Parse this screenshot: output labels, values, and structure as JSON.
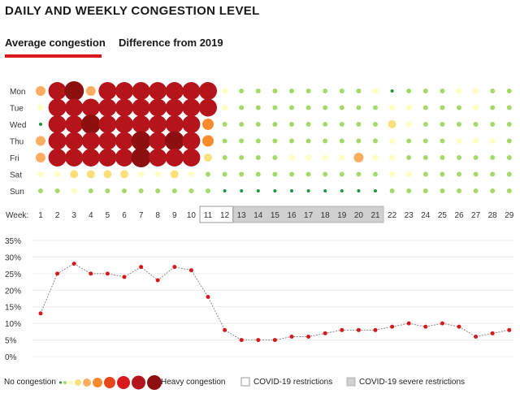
{
  "title": "DAILY AND WEEKLY CONGESTION LEVEL",
  "tabs": [
    {
      "label": "Average congestion",
      "active": true
    },
    {
      "label": "Difference from 2019",
      "active": false
    }
  ],
  "colors": {
    "accent": "#d7191c",
    "levels": [
      "#1a9641",
      "#a6d96a",
      "#ffffbf",
      "#f9e07a",
      "#fdae61",
      "#f98a2e",
      "#e8461b",
      "#d7191c",
      "#b5141a",
      "#8e0f12"
    ]
  },
  "chart_data": [
    {
      "type": "heatmap",
      "name": "congestion-dot-matrix",
      "days": [
        "Mon",
        "Tue",
        "Wed",
        "Thu",
        "Fri",
        "Sat",
        "Sun"
      ],
      "week_label": "Week:",
      "weeks": [
        "1",
        "2",
        "3",
        "4",
        "5",
        "6",
        "7",
        "8",
        "9",
        "10",
        "11",
        "12",
        "13",
        "14",
        "15",
        "16",
        "17",
        "18",
        "19",
        "20",
        "21",
        "22",
        "23",
        "24",
        "25",
        "26",
        "27",
        "28",
        "29"
      ],
      "levels": [
        [
          4,
          8,
          9,
          4,
          8,
          8,
          8,
          8,
          8,
          8,
          8,
          2,
          1,
          1,
          1,
          1,
          1,
          1,
          1,
          1,
          2,
          0,
          1,
          1,
          1,
          2,
          2,
          1,
          1
        ],
        [
          2,
          8,
          8,
          8,
          8,
          8,
          8,
          8,
          8,
          8,
          8,
          2,
          1,
          1,
          1,
          1,
          1,
          1,
          1,
          1,
          1,
          2,
          2,
          1,
          1,
          1,
          2,
          1,
          1
        ],
        [
          0,
          8,
          8,
          9,
          8,
          8,
          8,
          8,
          8,
          8,
          5,
          1,
          1,
          1,
          1,
          1,
          1,
          1,
          1,
          1,
          1,
          3,
          2,
          1,
          1,
          1,
          1,
          1,
          1
        ],
        [
          4,
          8,
          8,
          8,
          8,
          8,
          9,
          8,
          9,
          8,
          5,
          1,
          1,
          1,
          1,
          1,
          1,
          1,
          1,
          1,
          1,
          2,
          1,
          1,
          1,
          2,
          2,
          2,
          1
        ],
        [
          4,
          8,
          8,
          8,
          8,
          8,
          9,
          8,
          8,
          8,
          3,
          1,
          1,
          1,
          1,
          2,
          2,
          2,
          2,
          4,
          2,
          2,
          1,
          1,
          1,
          1,
          1,
          1,
          1
        ],
        [
          2,
          2,
          3,
          3,
          3,
          3,
          2,
          2,
          3,
          2,
          1,
          1,
          1,
          1,
          1,
          1,
          1,
          1,
          1,
          1,
          1,
          2,
          2,
          1,
          1,
          1,
          1,
          1,
          1
        ],
        [
          1,
          1,
          2,
          1,
          1,
          1,
          1,
          1,
          1,
          1,
          1,
          0,
          0,
          0,
          0,
          0,
          0,
          0,
          0,
          0,
          0,
          1,
          1,
          1,
          1,
          1,
          1,
          1,
          1
        ]
      ],
      "covid_restrictions_weeks": [
        "11",
        "12"
      ],
      "covid_severe_restrictions_weeks": [
        "13",
        "14",
        "15",
        "16",
        "17",
        "18",
        "19",
        "20",
        "21"
      ]
    },
    {
      "type": "line",
      "name": "weekly-congestion-line",
      "x": [
        1,
        2,
        3,
        4,
        5,
        6,
        7,
        8,
        9,
        10,
        11,
        12,
        13,
        14,
        15,
        16,
        17,
        18,
        19,
        20,
        21,
        22,
        23,
        24,
        25,
        26,
        27,
        28,
        29
      ],
      "y": [
        13,
        25,
        28,
        25,
        25,
        24,
        27,
        23,
        27,
        26,
        18,
        8,
        5,
        5,
        5,
        6,
        6,
        7,
        8,
        8,
        8,
        9,
        10,
        9,
        10,
        9,
        6,
        7,
        8
      ],
      "ylim": [
        0,
        35
      ],
      "yticks": [
        "0%",
        "5%",
        "10%",
        "15%",
        "20%",
        "25%",
        "30%",
        "35%"
      ],
      "grid": true
    }
  ],
  "legend": {
    "low_label": "No congestion",
    "high_label": "Heavy congestion",
    "restrictions_label": "COVID-19 restrictions",
    "severe_label": "COVID-19 severe restrictions"
  }
}
